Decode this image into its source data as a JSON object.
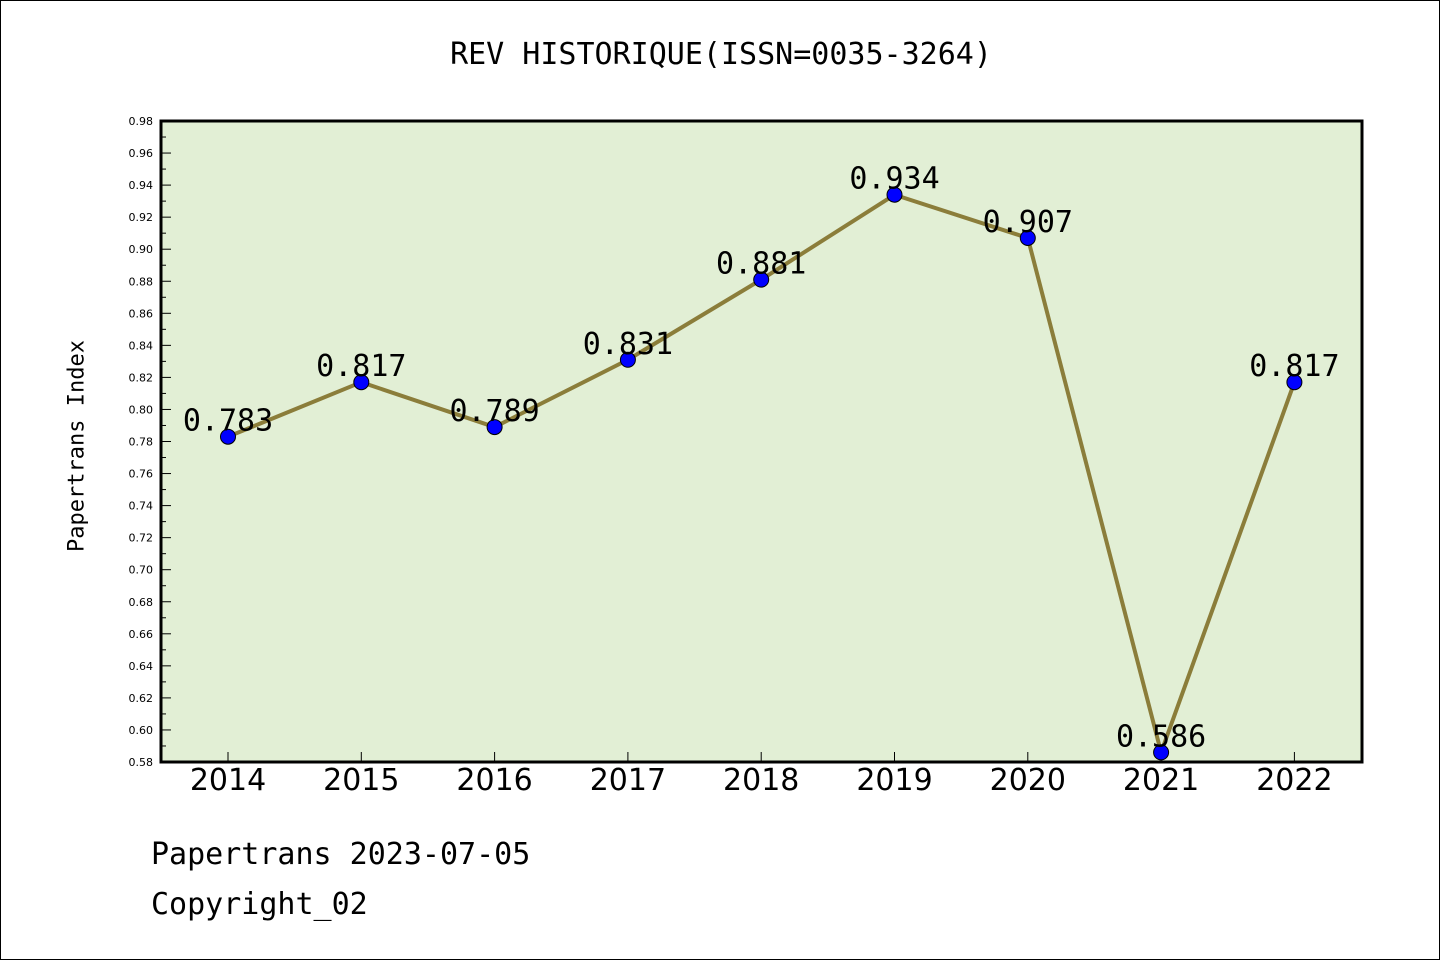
{
  "chart_data": {
    "type": "line",
    "title": "REV HISTORIQUE(ISSN=0035-3264)",
    "xlabel": "",
    "ylabel": "Papertrans Index",
    "categories": [
      "2014",
      "2015",
      "2016",
      "2017",
      "2018",
      "2019",
      "2020",
      "2021",
      "2022"
    ],
    "series": [
      {
        "values": [
          0.783,
          0.817,
          0.789,
          0.831,
          0.881,
          0.934,
          0.907,
          0.586,
          0.817
        ]
      }
    ],
    "data_labels": [
      "0.783",
      "0.817",
      "0.789",
      "0.831",
      "0.881",
      "0.934",
      "0.907",
      "0.586",
      "0.817"
    ],
    "ylim": [
      0.58,
      0.98
    ],
    "yticks": [
      "0.58",
      "0.60",
      "0.62",
      "0.64",
      "0.66",
      "0.68",
      "0.70",
      "0.72",
      "0.74",
      "0.76",
      "0.78",
      "0.80",
      "0.82",
      "0.84",
      "0.86",
      "0.88",
      "0.90",
      "0.92",
      "0.94",
      "0.96",
      "0.98"
    ],
    "grid": false,
    "colors": {
      "plot_background": "#e2efd5",
      "line": "#8b7d3a",
      "marker": "#0000ff"
    }
  },
  "footer": {
    "source_line": "Papertrans 2023-07-05",
    "copyright": "Copyright_02"
  }
}
